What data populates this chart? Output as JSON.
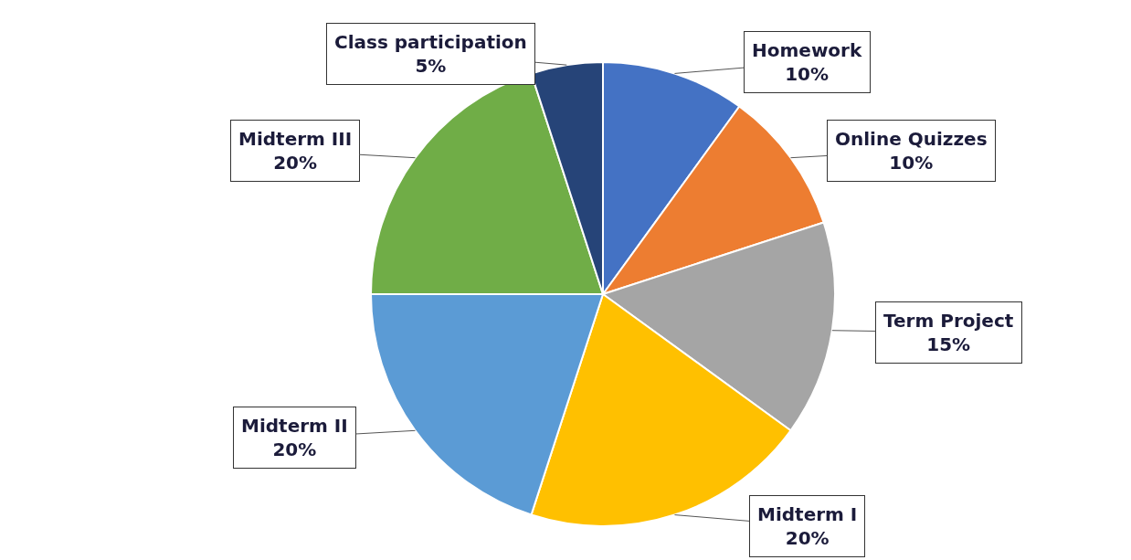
{
  "chart_data": {
    "type": "pie",
    "categories": [
      "Homework",
      "Online Quizzes",
      "Term Project",
      "Midterm I",
      "Midterm II",
      "Midterm III",
      "Class participation"
    ],
    "values": [
      10,
      10,
      15,
      20,
      20,
      20,
      5
    ],
    "colors": [
      "#4472c4",
      "#ed7d31",
      "#a5a5a5",
      "#ffc000",
      "#5b9bd5",
      "#70ad47",
      "#264478"
    ],
    "value_labels": [
      "10%",
      "10%",
      "15%",
      "20%",
      "20%",
      "20%",
      "5%"
    ]
  }
}
